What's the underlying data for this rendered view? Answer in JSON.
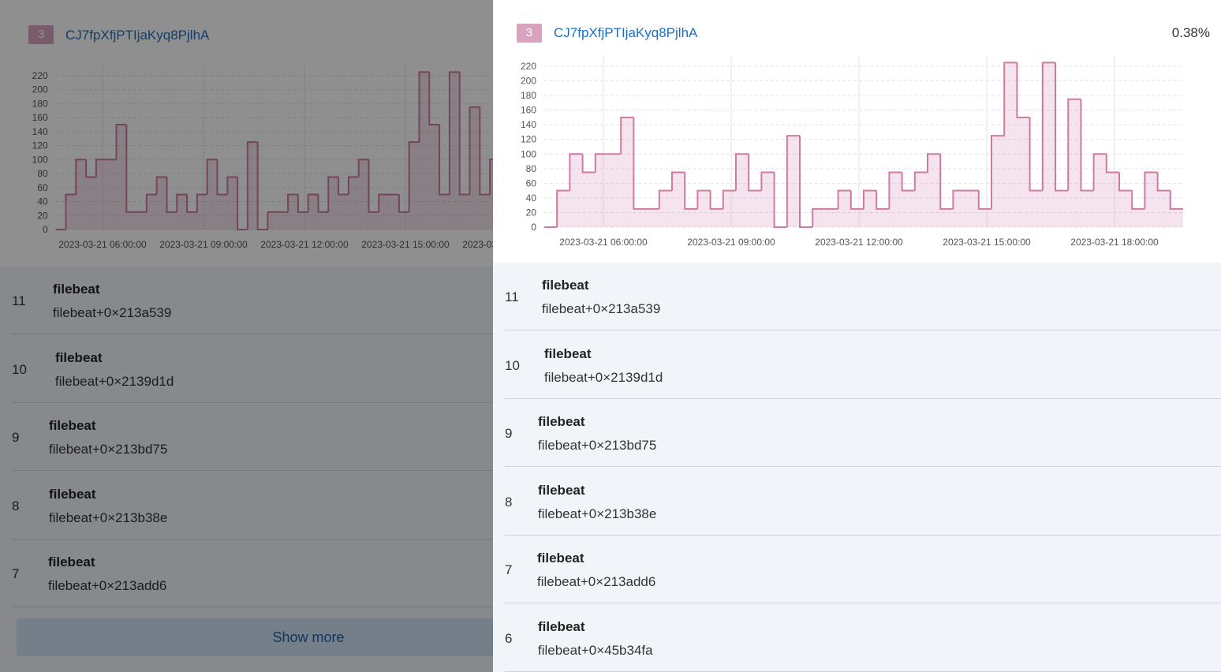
{
  "flyout": {
    "badge": "3",
    "title": "CJ7fpXfjPTIjaKyq8PjlhA",
    "percent": "0.38%"
  },
  "chart_data": {
    "type": "step",
    "values": [
      0,
      50,
      100,
      75,
      100,
      100,
      150,
      25,
      25,
      50,
      75,
      25,
      50,
      25,
      50,
      100,
      50,
      75,
      0,
      125,
      0,
      25,
      25,
      50,
      25,
      50,
      25,
      75,
      50,
      75,
      100,
      25,
      50,
      50,
      25,
      125,
      225,
      150,
      50,
      225,
      50,
      175,
      50,
      100,
      75,
      50,
      25,
      75,
      50,
      25
    ],
    "color": "#cf7aa3",
    "xlim": [
      0,
      50
    ],
    "xticks": [
      {
        "value": 4.63,
        "label": "2023-03-21 06:00:00"
      },
      {
        "value": 14.63,
        "label": "2023-03-21 09:00:00"
      },
      {
        "value": 24.63,
        "label": "2023-03-21 12:00:00"
      },
      {
        "value": 34.63,
        "label": "2023-03-21 15:00:00"
      },
      {
        "value": 44.63,
        "label": "2023-03-21 18:00:00"
      }
    ],
    "ylim": [
      0,
      230
    ],
    "yticks": [
      0,
      20,
      40,
      60,
      80,
      100,
      120,
      140,
      160,
      180,
      200,
      220
    ],
    "grid": true
  },
  "frames": [
    {
      "index": "11",
      "name": "filebeat",
      "address": "filebeat+0×213a539"
    },
    {
      "index": "10",
      "name": "filebeat",
      "address": "filebeat+0×2139d1d"
    },
    {
      "index": "9",
      "name": "filebeat",
      "address": "filebeat+0×213bd75"
    },
    {
      "index": "8",
      "name": "filebeat",
      "address": "filebeat+0×213b38e"
    },
    {
      "index": "7",
      "name": "filebeat",
      "address": "filebeat+0×213add6"
    },
    {
      "index": "6",
      "name": "filebeat",
      "address": "filebeat+0×45b34fa"
    }
  ],
  "show_more": "Show more"
}
